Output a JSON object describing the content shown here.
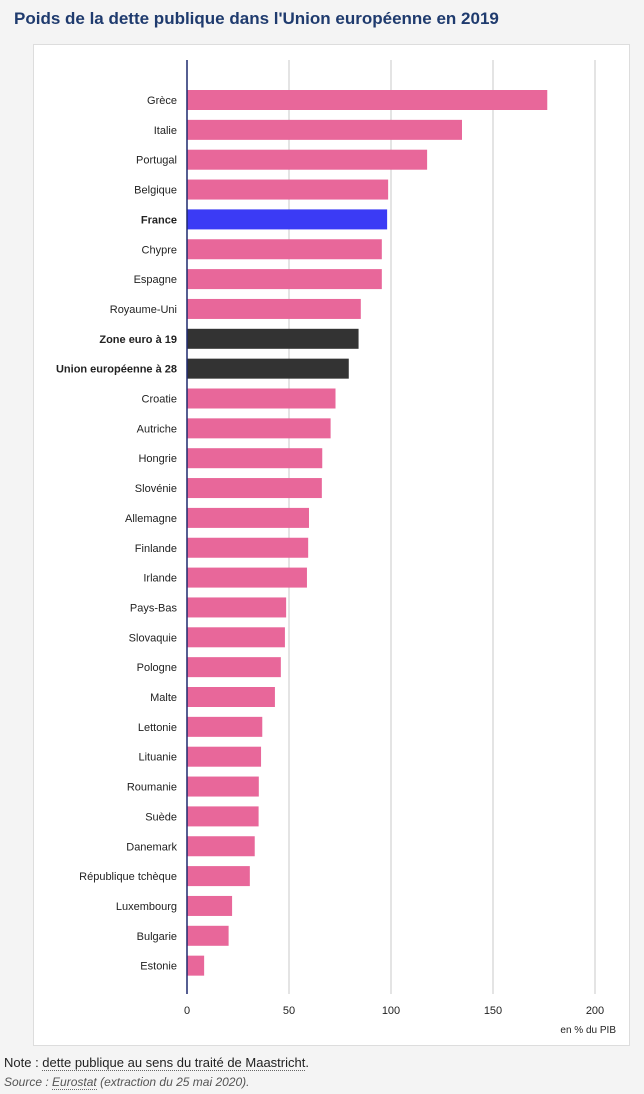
{
  "title": "Poids de la dette publique dans l'Union européenne en 2019",
  "note": {
    "prefix": "Note : ",
    "link": "dette publique au sens du traité de Maastricht",
    "suffix": "."
  },
  "source": {
    "prefix": "Source : ",
    "link": "Eurostat",
    "suffix": " (extraction du 25 mai 2020)."
  },
  "colors": {
    "default": "#e8679a",
    "france": "#3b3bf5",
    "aggregate": "#333333",
    "grid": "#c8c8c8",
    "axis": "#1f2a6e"
  },
  "chart_data": {
    "type": "bar",
    "orientation": "horizontal",
    "xlabel": "en % du PIB",
    "xlim": [
      0,
      200
    ],
    "xticks": [
      0,
      50,
      100,
      150,
      200
    ],
    "grid": true,
    "categories": [
      "Grèce",
      "Italie",
      "Portugal",
      "Belgique",
      "France",
      "Chypre",
      "Espagne",
      "Royaume-Uni",
      "Zone euro à 19",
      "Union européenne à 28",
      "Croatie",
      "Autriche",
      "Hongrie",
      "Slovénie",
      "Allemagne",
      "Finlande",
      "Irlande",
      "Pays-Bas",
      "Slovaquie",
      "Pologne",
      "Malte",
      "Lettonie",
      "Lituanie",
      "Roumanie",
      "Suède",
      "Danemark",
      "République tchèque",
      "Luxembourg",
      "Bulgarie",
      "Estonie"
    ],
    "values": [
      176.6,
      134.8,
      117.7,
      98.6,
      98.1,
      95.5,
      95.5,
      85.2,
      84.1,
      79.3,
      72.8,
      70.4,
      66.3,
      66.1,
      59.8,
      59.4,
      58.8,
      48.6,
      48.0,
      46.0,
      43.1,
      36.9,
      36.3,
      35.2,
      35.1,
      33.2,
      30.8,
      22.1,
      20.4,
      8.4
    ],
    "highlight": {
      "France": "france",
      "Zone euro à 19": "aggregate",
      "Union européenne à 28": "aggregate"
    },
    "bold_categories": [
      "France",
      "Zone euro à 19",
      "Union européenne à 28"
    ]
  }
}
